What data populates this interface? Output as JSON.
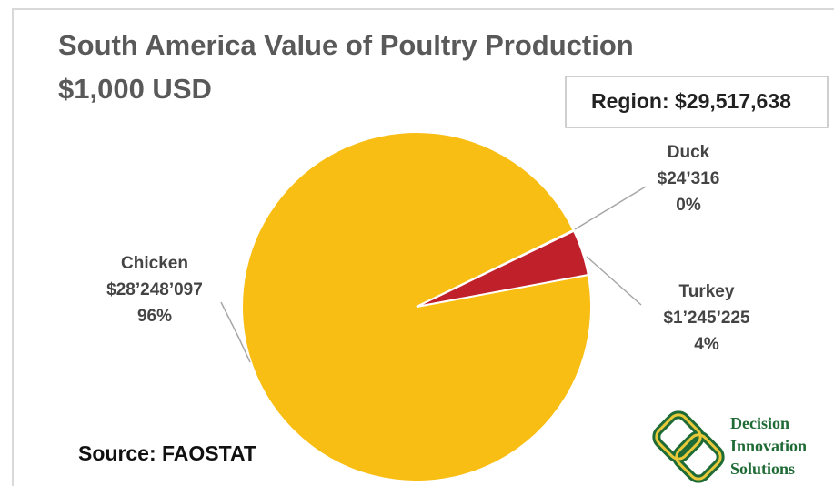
{
  "chart_data": {
    "type": "pie",
    "title": "South America Value of Poultry Production",
    "subtitle": "$1,000 USD",
    "categories": [
      "Chicken",
      "Duck",
      "Turkey"
    ],
    "values": [
      28248097,
      24316,
      1245225
    ],
    "value_labels": [
      "$28’248’097",
      "$24’316",
      "$1’245’225"
    ],
    "percents": [
      96,
      0,
      4
    ],
    "percent_labels": [
      "96%",
      "0%",
      "4%"
    ],
    "colors": [
      "#f9be14",
      "#8c8c8c",
      "#c0202a"
    ],
    "region_label": "Region:",
    "region_total": 29517638,
    "region_total_label": "$29,517,638",
    "source": "Source: FAOSTAT",
    "logo": [
      "Decision",
      "Innovation",
      "Solutions"
    ]
  }
}
